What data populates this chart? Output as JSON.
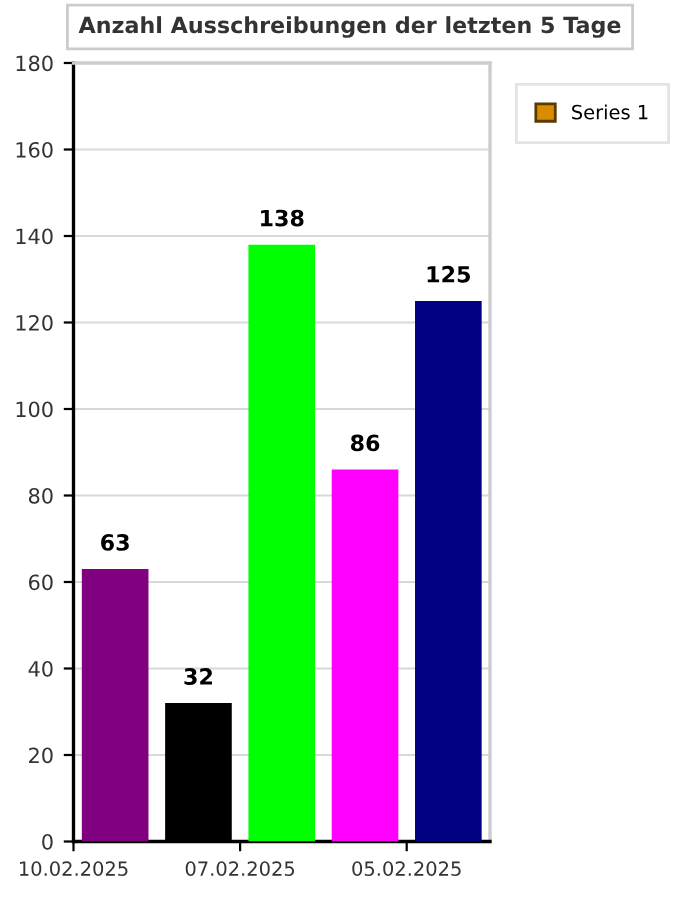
{
  "chart_data": {
    "type": "bar",
    "title": "Anzahl Ausschreibungen der letzten 5 Tage",
    "categories": [
      "10.02.2025",
      null,
      "07.02.2025",
      null,
      "05.02.2025"
    ],
    "series": [
      {
        "name": "Series 1",
        "color": "#d98c00",
        "values": [
          63,
          32,
          138,
          86,
          125
        ],
        "colors": [
          "#800080",
          "#000000",
          "#00ff00",
          "#ff00ff",
          "#000080"
        ]
      }
    ],
    "ylim": [
      0,
      180
    ],
    "yticks": [
      0,
      20,
      40,
      60,
      80,
      100,
      120,
      140,
      160,
      180
    ],
    "grid": "y",
    "legend": "top right",
    "data_labels": true
  }
}
